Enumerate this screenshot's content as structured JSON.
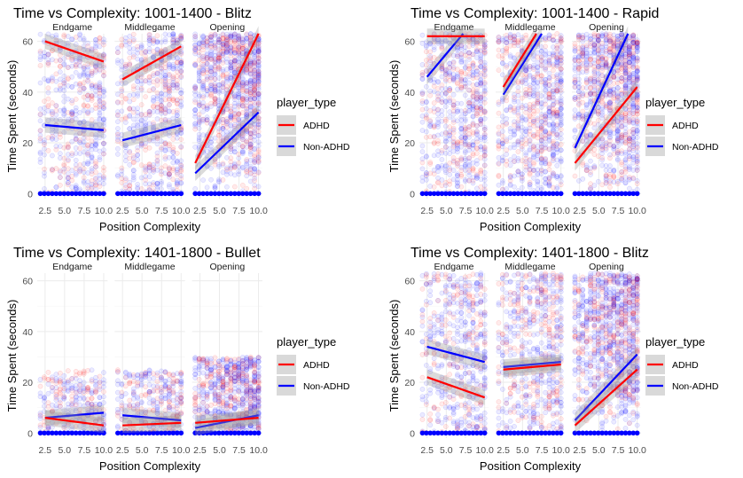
{
  "chart_data": [
    {
      "type": "scatter",
      "title": "Time vs Complexity: 1001-1400 - Blitz",
      "xlabel": "Position Complexity",
      "ylabel": "Time Spent (seconds)",
      "xlim": [
        1.5,
        10.5
      ],
      "ylim": [
        -2,
        63
      ],
      "x_ticks": [
        "2.5",
        "5.0",
        "7.5",
        "10.0"
      ],
      "y_ticks": [
        "0",
        "20",
        "40",
        "60"
      ],
      "facets": [
        {
          "name": "Endgame",
          "density": 0.45,
          "maxy": 63,
          "lines": {
            "ADHD": [
              [
                2.5,
                60
              ],
              [
                10,
                52
              ]
            ],
            "Non-ADHD": [
              [
                2.5,
                27
              ],
              [
                10,
                25
              ]
            ]
          }
        },
        {
          "name": "Middlegame",
          "density": 0.55,
          "maxy": 63,
          "lines": {
            "ADHD": [
              [
                2.5,
                45
              ],
              [
                10,
                58
              ]
            ],
            "Non-ADHD": [
              [
                2.5,
                21
              ],
              [
                10,
                27
              ]
            ]
          }
        },
        {
          "name": "Opening",
          "density": 1.0,
          "maxy": 63,
          "lines": {
            "ADHD": [
              [
                1.9,
                12
              ],
              [
                10,
                63
              ]
            ],
            "Non-ADHD": [
              [
                1.9,
                8
              ],
              [
                10,
                32
              ]
            ]
          }
        }
      ]
    },
    {
      "type": "scatter",
      "title": "Time vs Complexity: 1001-1400 - Rapid",
      "xlabel": "Position Complexity",
      "ylabel": "Time Spent (seconds)",
      "xlim": [
        1.5,
        10.5
      ],
      "ylim": [
        -2,
        63
      ],
      "x_ticks": [
        "2.5",
        "5.0",
        "7.5",
        "10.0"
      ],
      "y_ticks": [
        "0",
        "20",
        "40",
        "60"
      ],
      "facets": [
        {
          "name": "Endgame",
          "density": 0.6,
          "maxy": 63,
          "lines": {
            "ADHD": [
              [
                2.5,
                62
              ],
              [
                10,
                62
              ]
            ],
            "Non-ADHD": [
              [
                2.5,
                46
              ],
              [
                7.2,
                63
              ]
            ]
          }
        },
        {
          "name": "Middlegame",
          "density": 0.65,
          "maxy": 63,
          "lines": {
            "ADHD": [
              [
                2.5,
                42
              ],
              [
                6.8,
                63
              ]
            ],
            "Non-ADHD": [
              [
                2.5,
                39
              ],
              [
                7.5,
                63
              ]
            ]
          }
        },
        {
          "name": "Opening",
          "density": 0.95,
          "maxy": 63,
          "lines": {
            "ADHD": [
              [
                1.9,
                12
              ],
              [
                10,
                42
              ]
            ],
            "Non-ADHD": [
              [
                1.9,
                18
              ],
              [
                8.8,
                63
              ]
            ]
          }
        }
      ]
    },
    {
      "type": "scatter",
      "title": "Time vs Complexity: 1401-1800 - Bullet",
      "xlabel": "Position Complexity",
      "ylabel": "Time Spent (seconds)",
      "xlim": [
        1.5,
        10.5
      ],
      "ylim": [
        -2,
        63
      ],
      "x_ticks": [
        "2.5",
        "5.0",
        "7.5",
        "10.0"
      ],
      "y_ticks": [
        "0",
        "20",
        "40",
        "60"
      ],
      "facets": [
        {
          "name": "Endgame",
          "density": 0.18,
          "maxy": 25,
          "lines": {
            "ADHD": [
              [
                2.5,
                6
              ],
              [
                10,
                3
              ]
            ],
            "Non-ADHD": [
              [
                2.5,
                6
              ],
              [
                10,
                8
              ]
            ]
          }
        },
        {
          "name": "Middlegame",
          "density": 0.22,
          "maxy": 25,
          "lines": {
            "ADHD": [
              [
                2.5,
                3
              ],
              [
                10,
                4
              ]
            ],
            "Non-ADHD": [
              [
                2.5,
                7
              ],
              [
                10,
                5
              ]
            ]
          }
        },
        {
          "name": "Opening",
          "density": 0.6,
          "maxy": 30,
          "lines": {
            "ADHD": [
              [
                1.9,
                4
              ],
              [
                10,
                6
              ]
            ],
            "Non-ADHD": [
              [
                1.9,
                2
              ],
              [
                10,
                7
              ]
            ]
          }
        }
      ]
    },
    {
      "type": "scatter",
      "title": "Time vs Complexity: 1401-1800 - Blitz",
      "xlabel": "Position Complexity",
      "ylabel": "Time Spent (seconds)",
      "xlim": [
        1.5,
        10.5
      ],
      "ylim": [
        -2,
        63
      ],
      "x_ticks": [
        "2.5",
        "5.0",
        "7.5",
        "10.0"
      ],
      "y_ticks": [
        "0",
        "20",
        "40",
        "60"
      ],
      "facets": [
        {
          "name": "Endgame",
          "density": 0.45,
          "maxy": 63,
          "lines": {
            "ADHD": [
              [
                2.5,
                22
              ],
              [
                10,
                14
              ]
            ],
            "Non-ADHD": [
              [
                2.5,
                34
              ],
              [
                10,
                28
              ]
            ]
          }
        },
        {
          "name": "Middlegame",
          "density": 0.5,
          "maxy": 63,
          "lines": {
            "ADHD": [
              [
                2.5,
                25
              ],
              [
                10,
                27
              ]
            ],
            "Non-ADHD": [
              [
                2.5,
                26
              ],
              [
                10,
                28
              ]
            ]
          }
        },
        {
          "name": "Opening",
          "density": 0.95,
          "maxy": 63,
          "lines": {
            "ADHD": [
              [
                1.9,
                3
              ],
              [
                10,
                25
              ]
            ],
            "Non-ADHD": [
              [
                1.9,
                5
              ],
              [
                10,
                31
              ]
            ]
          }
        }
      ]
    }
  ],
  "legend": {
    "title": "player_type",
    "entries": [
      {
        "label": "ADHD",
        "color": "#ff0000"
      },
      {
        "label": "Non-ADHD",
        "color": "#0000ff"
      }
    ]
  }
}
